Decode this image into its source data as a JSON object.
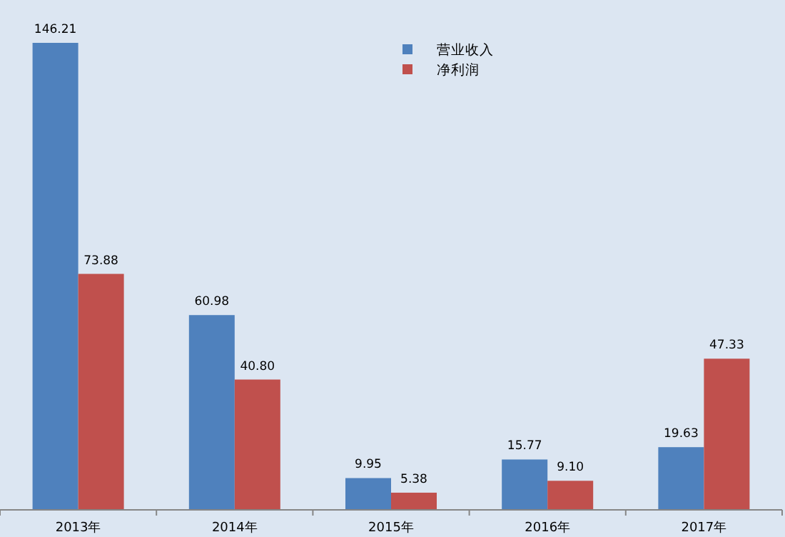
{
  "chart_data": {
    "type": "bar",
    "categories": [
      "2013年",
      "2014年",
      "2015年",
      "2016年",
      "2017年"
    ],
    "series": [
      {
        "name": "营业收入",
        "color": "#4f81bd",
        "values": [
          146.21,
          60.98,
          9.95,
          15.77,
          19.63
        ],
        "value_labels": [
          "146.21",
          "60.98",
          "9.95",
          "15.77",
          "19.63"
        ]
      },
      {
        "name": "净利润",
        "color": "#c0504d",
        "values": [
          73.88,
          40.8,
          5.38,
          9.1,
          47.33
        ],
        "value_labels": [
          "73.88",
          "40.80",
          "5.38",
          "9.10",
          "47.33"
        ]
      }
    ],
    "legend": "top"
  }
}
